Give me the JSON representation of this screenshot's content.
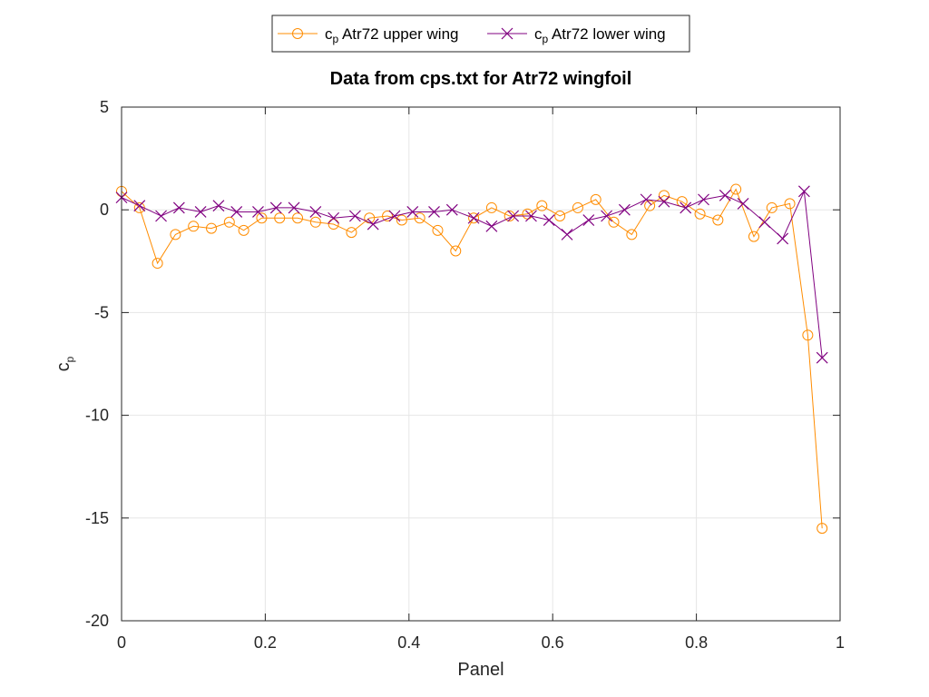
{
  "chart_data": {
    "type": "line",
    "title": "Data from cps.txt for Atr72 wingfoil",
    "xlabel": "Panel",
    "ylabel": {
      "base": "c",
      "sub": "p"
    },
    "xlim": [
      0,
      1
    ],
    "ylim": [
      -20,
      5
    ],
    "xticks": [
      0,
      0.2,
      0.4,
      0.6,
      0.8,
      1
    ],
    "xtick_labels": [
      "0",
      "0.2",
      "0.4",
      "0.6",
      "0.8",
      "1"
    ],
    "yticks": [
      5,
      0,
      -5,
      -10,
      -15,
      -20
    ],
    "ytick_labels": [
      "5",
      "0",
      "-5",
      "-10",
      "-15",
      "-20"
    ],
    "grid": true,
    "legend_position": "top-outside",
    "series": [
      {
        "name": {
          "base": "c",
          "sub": "p",
          "rest": " Atr72 upper wing"
        },
        "color": "#ff8c00",
        "marker": "circle",
        "x": [
          0.0,
          0.025,
          0.05,
          0.075,
          0.1,
          0.125,
          0.15,
          0.17,
          0.195,
          0.22,
          0.245,
          0.27,
          0.295,
          0.32,
          0.345,
          0.37,
          0.39,
          0.415,
          0.44,
          0.465,
          0.49,
          0.515,
          0.54,
          0.565,
          0.585,
          0.61,
          0.635,
          0.66,
          0.685,
          0.71,
          0.735,
          0.755,
          0.78,
          0.805,
          0.83,
          0.855,
          0.88,
          0.905,
          0.93,
          0.955,
          0.975
        ],
        "y": [
          0.9,
          0.1,
          -2.6,
          -1.2,
          -0.8,
          -0.9,
          -0.6,
          -1.0,
          -0.4,
          -0.4,
          -0.4,
          -0.6,
          -0.7,
          -1.1,
          -0.4,
          -0.3,
          -0.5,
          -0.4,
          -1.0,
          -2.0,
          -0.4,
          0.1,
          -0.3,
          -0.2,
          0.2,
          -0.3,
          0.1,
          0.5,
          -0.6,
          -1.2,
          0.2,
          0.7,
          0.4,
          -0.2,
          -0.5,
          1.0,
          -1.3,
          0.1,
          0.3,
          -6.1,
          -15.5
        ]
      },
      {
        "name": {
          "base": "c",
          "sub": "p",
          "rest": " Atr72 lower wing"
        },
        "color": "#800080",
        "marker": "x",
        "x": [
          0.0,
          0.025,
          0.055,
          0.08,
          0.11,
          0.135,
          0.16,
          0.19,
          0.215,
          0.24,
          0.27,
          0.295,
          0.325,
          0.35,
          0.38,
          0.405,
          0.435,
          0.46,
          0.49,
          0.515,
          0.545,
          0.57,
          0.595,
          0.62,
          0.65,
          0.675,
          0.7,
          0.73,
          0.755,
          0.785,
          0.81,
          0.84,
          0.865,
          0.895,
          0.92,
          0.95,
          0.975
        ],
        "y": [
          0.6,
          0.2,
          -0.3,
          0.1,
          -0.1,
          0.2,
          -0.1,
          -0.1,
          0.1,
          0.1,
          -0.1,
          -0.4,
          -0.3,
          -0.7,
          -0.3,
          -0.1,
          -0.1,
          0.0,
          -0.4,
          -0.8,
          -0.3,
          -0.3,
          -0.5,
          -1.2,
          -0.5,
          -0.3,
          0.0,
          0.5,
          0.4,
          0.1,
          0.5,
          0.7,
          0.3,
          -0.6,
          -1.4,
          0.9,
          -7.2
        ]
      }
    ]
  }
}
